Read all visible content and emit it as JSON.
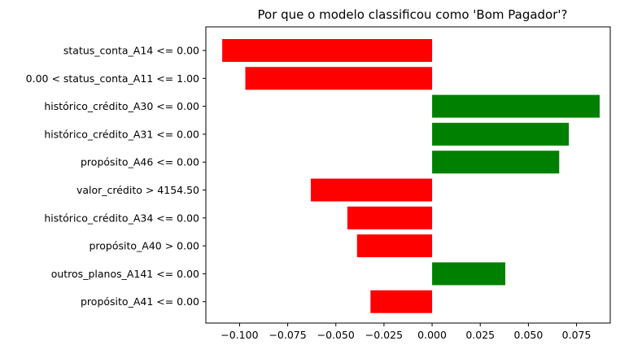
{
  "chart_data": {
    "type": "bar",
    "orientation": "horizontal",
    "title": "Por que o modelo classificou como 'Bom Pagador'?",
    "xlabel": "",
    "ylabel": "",
    "xlim": [
      -0.1175,
      0.0925
    ],
    "xticks": [
      -0.1,
      -0.075,
      -0.05,
      -0.025,
      0.0,
      0.025,
      0.05,
      0.075
    ],
    "xtick_labels": [
      "−0.100",
      "−0.075",
      "−0.050",
      "−0.025",
      "0.000",
      "0.025",
      "0.050",
      "0.075"
    ],
    "grid": false,
    "legend": null,
    "positive_color": "#008000",
    "negative_color": "#ff0000",
    "categories": [
      "status_conta_A14 <= 0.00",
      "0.00 < status_conta_A11 <= 1.00",
      "histórico_crédito_A30 <= 0.00",
      "histórico_crédito_A31 <= 0.00",
      "propósito_A46 <= 0.00",
      "valor_crédito > 4154.50",
      "histórico_crédito_A34 <= 0.00",
      "propósito_A40 > 0.00",
      "outros_planos_A141 <= 0.00",
      "propósito_A41 <= 0.00"
    ],
    "values": [
      -0.109,
      -0.097,
      0.087,
      0.071,
      0.066,
      -0.063,
      -0.044,
      -0.039,
      0.038,
      -0.032
    ]
  }
}
